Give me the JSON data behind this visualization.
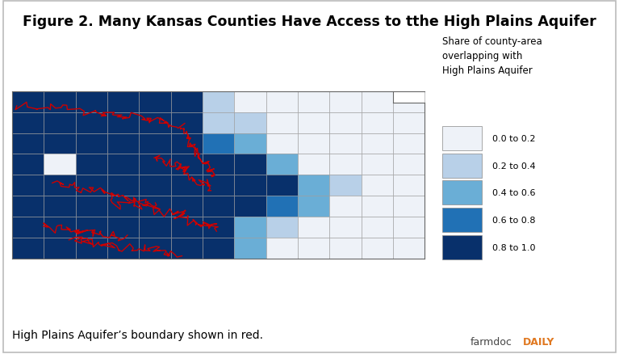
{
  "title": "Figure 2. Many Kansas Counties Have Access to tthe High Plains Aquifer",
  "subtitle": "High Plains Aquifer’s boundary shown in red.",
  "legend_title": "Share of county-area\noverlapping with\nHigh Plains Aquifer",
  "legend_labels": [
    "0.0 to 0.2",
    "0.2 to 0.4",
    "0.4 to 0.6",
    "0.6 to 0.8",
    "0.8 to 1.0"
  ],
  "swatch_colors": [
    "#eef2f8",
    "#b8d0e8",
    "#6aaed6",
    "#2171b5",
    "#08306b"
  ],
  "background_color": "#ffffff",
  "border_color": "#bbbbbb",
  "farmdoc_text": "farmdoc",
  "farmdoc_daily": "DAILY",
  "farmdoc_color": "#444444",
  "farmdoc_daily_color": "#e07820",
  "fig_width": 7.67,
  "fig_height": 4.39,
  "title_fontsize": 12.5,
  "subtitle_fontsize": 10,
  "legend_fontsize": 8,
  "legend_title_fontsize": 8.5,
  "county_edge_color": "#999999",
  "county_edge_lw": 0.4,
  "aquifer_color": "#cc0000",
  "aquifer_lw": 1.0,
  "aquifer_grid": [
    [
      0.9,
      0.9,
      0.9,
      0.9,
      0.9,
      0.9,
      0.25,
      0.05,
      0.05,
      0.05,
      0.05,
      0.05,
      0.05
    ],
    [
      0.9,
      0.9,
      0.9,
      0.9,
      0.9,
      0.9,
      0.25,
      0.25,
      0.05,
      0.05,
      0.05,
      0.05,
      0.05
    ],
    [
      0.9,
      0.9,
      0.9,
      0.9,
      0.9,
      0.9,
      0.7,
      0.45,
      0.05,
      0.05,
      0.05,
      0.05,
      0.05
    ],
    [
      0.9,
      0.05,
      0.9,
      0.9,
      0.9,
      0.9,
      0.9,
      0.9,
      0.45,
      0.05,
      0.05,
      0.05,
      0.05
    ],
    [
      0.9,
      0.9,
      0.9,
      0.9,
      0.9,
      0.9,
      0.9,
      0.9,
      0.9,
      0.45,
      0.25,
      0.05,
      0.05
    ],
    [
      0.9,
      0.9,
      0.9,
      0.9,
      0.9,
      0.9,
      0.9,
      0.9,
      0.7,
      0.45,
      0.05,
      0.05,
      0.05
    ],
    [
      0.9,
      0.9,
      0.9,
      0.9,
      0.9,
      0.9,
      0.9,
      0.45,
      0.25,
      0.05,
      0.05,
      0.05,
      0.05
    ],
    [
      0.9,
      0.9,
      0.9,
      0.9,
      0.9,
      0.9,
      0.9,
      0.45,
      0.05,
      0.05,
      0.05,
      0.05,
      0.05
    ]
  ],
  "n_cols": 13,
  "n_rows": 8,
  "lon_min": -102.05,
  "lon_max": -94.62,
  "lat_min": 36.99,
  "lat_max": 40.0
}
